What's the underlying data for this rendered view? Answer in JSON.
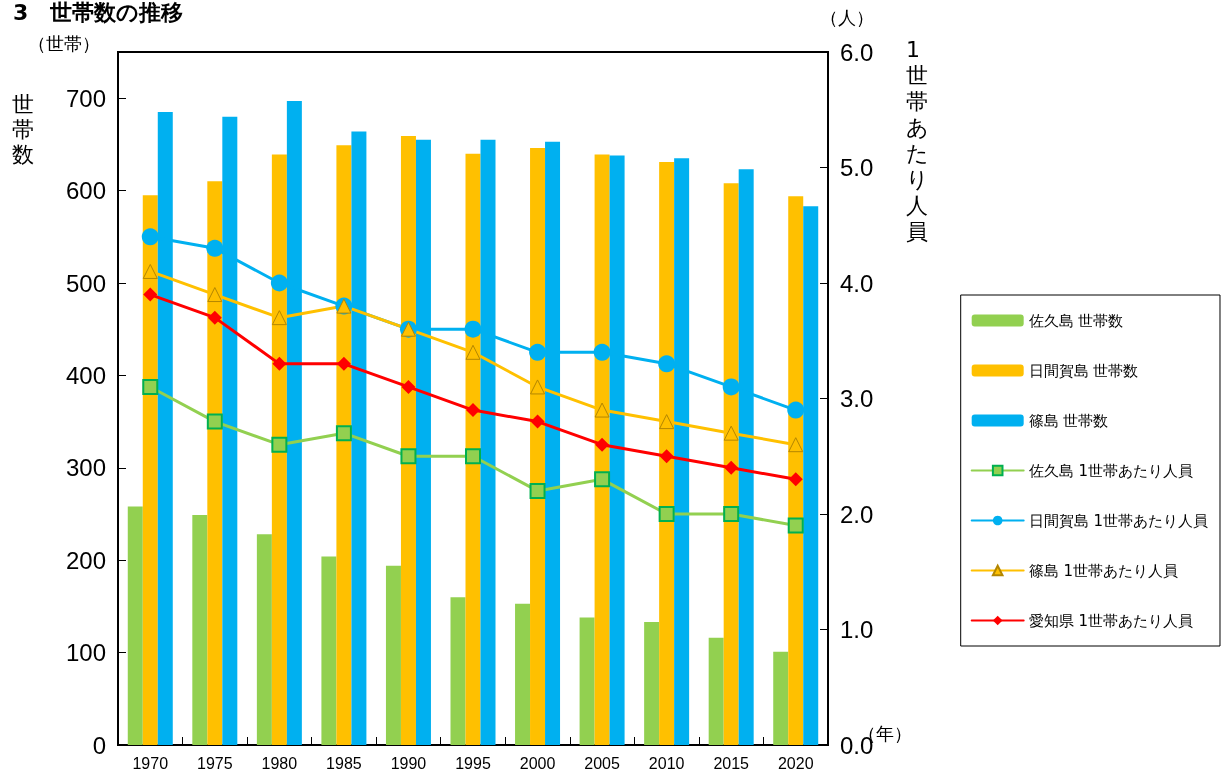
{
  "chart_data": {
    "type": "bar",
    "title": "3　世帯数の推移",
    "ylabel": "世帯数",
    "y2label": "1世帯あたり人員",
    "annotations": [
      "（世帯）",
      "（人）",
      "（年）"
    ],
    "categories": [
      "1970",
      "1975",
      "1980",
      "1985",
      "1990",
      "1995",
      "2000",
      "2005",
      "2010",
      "2015",
      "2020"
    ],
    "series": [
      {
        "name": "佐久島 世帯数",
        "color": "#92d050",
        "values": [
          258,
          249,
          228,
          204,
          194,
          160,
          153,
          138,
          133,
          116,
          101
        ]
      },
      {
        "name": "日間賀島 世帯数",
        "color": "#ffc000",
        "values": [
          595,
          610,
          639,
          649,
          659,
          640,
          646,
          639,
          631,
          608,
          594
        ]
      },
      {
        "name": "篠島 世帯数",
        "color": "#00b0f0",
        "values": [
          685,
          680,
          697,
          664,
          655,
          655,
          653,
          638,
          635,
          623,
          583
        ]
      },
      {
        "name": "佐久島 1世帯あたり人員",
        "type": "line",
        "axis": "y2",
        "marker": "square",
        "color": "#92d050",
        "values": [
          3.1,
          2.8,
          2.6,
          2.7,
          2.5,
          2.5,
          2.2,
          2.3,
          2.0,
          2.0,
          1.9
        ]
      },
      {
        "name": "日間賀島 1世帯あたり人員",
        "type": "line",
        "axis": "y2",
        "marker": "circle",
        "color": "#00b0f0",
        "values": [
          4.4,
          4.3,
          4.0,
          3.8,
          3.6,
          3.6,
          3.4,
          3.4,
          3.3,
          3.1,
          2.9
        ]
      },
      {
        "name": "篠島 1世帯あたり人員",
        "type": "line",
        "axis": "y2",
        "marker": "triangle",
        "color": "#ffc000",
        "values": [
          4.1,
          3.9,
          3.7,
          3.8,
          3.6,
          3.4,
          3.1,
          2.9,
          2.8,
          2.7,
          2.6
        ]
      },
      {
        "name": "愛知県 1世帯あたり人員",
        "type": "line",
        "axis": "y2",
        "marker": "diamond",
        "color": "#ff0000",
        "values": [
          3.9,
          3.7,
          3.3,
          3.3,
          3.1,
          2.9,
          2.8,
          2.6,
          2.5,
          2.4,
          2.3
        ]
      }
    ],
    "ylim": [
      0,
      750
    ],
    "yticks": [
      0,
      100,
      200,
      300,
      400,
      500,
      600,
      700
    ],
    "y2lim": [
      0,
      6
    ],
    "y2ticks": [
      {
        "value": 0,
        "label": "0.0"
      },
      {
        "value": 1,
        "label": "1.0"
      },
      {
        "value": 2,
        "label": "2.0"
      },
      {
        "value": 3,
        "label": "3.0"
      },
      {
        "value": 4,
        "label": "4.0"
      },
      {
        "value": 5,
        "label": "5.0"
      },
      {
        "value": 6,
        "label": "6.0"
      }
    ],
    "grid": false,
    "legend": "right",
    "line_style": "solid"
  }
}
